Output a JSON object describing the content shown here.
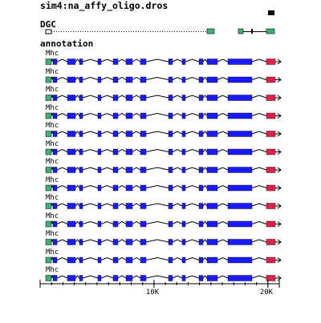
{
  "header": {
    "title": "sim4:na_affy_oligo.dros"
  },
  "tracks": {
    "dgc_label": "DGC",
    "annotation_label": "annotation"
  },
  "rows": [
    {
      "label": "Mhc"
    },
    {
      "label": "Mhc"
    },
    {
      "label": "Mhc"
    },
    {
      "label": "Mhc"
    },
    {
      "label": "Mhc"
    },
    {
      "label": "Mhc"
    },
    {
      "label": "Mhc"
    },
    {
      "label": "Mhc"
    },
    {
      "label": "Mhc"
    },
    {
      "label": "Mhc"
    },
    {
      "label": "Mhc"
    },
    {
      "label": "Mhc"
    },
    {
      "label": "Mhc"
    }
  ],
  "ruler": {
    "ticks": [
      {
        "label": "10K",
        "value": 10000
      },
      {
        "label": "20K",
        "value": 20000
      }
    ],
    "max": 21000
  },
  "colors": {
    "exon": "#1a1aff",
    "utr": "#3cb371",
    "highlight": "#e0204a",
    "intron": "#000000",
    "dgc_box": "#3cb371"
  }
}
